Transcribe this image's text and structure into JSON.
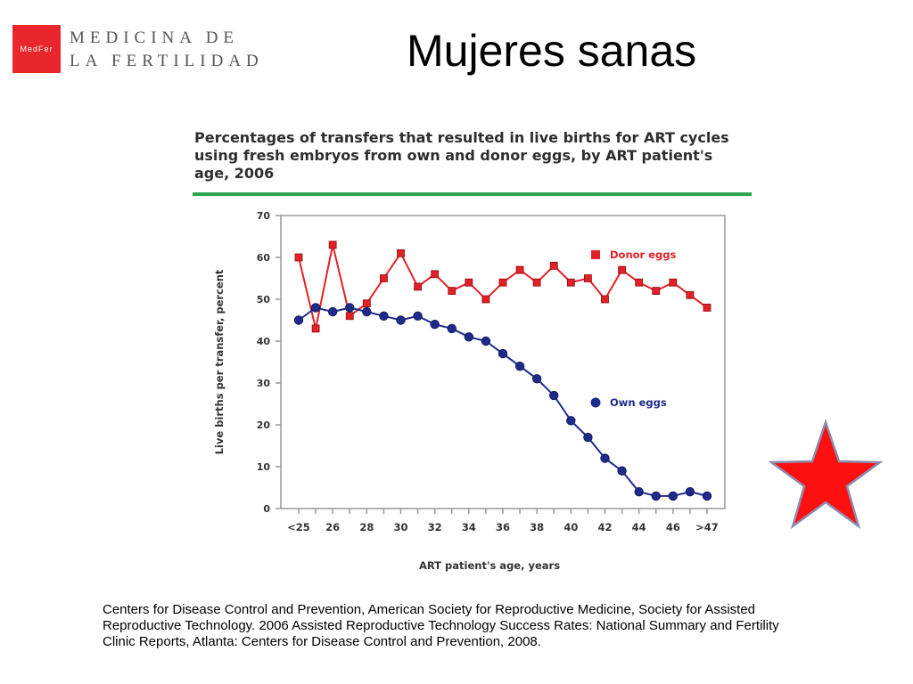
{
  "logo": {
    "mark": "MedFer",
    "line1": "MEDICINA DE",
    "line2": "LA FERTILIDAD"
  },
  "slide": {
    "title": "Mujeres sanas"
  },
  "chart_data": {
    "type": "line",
    "title": "Percentages of transfers that resulted in live births for ART cycles using fresh embryos from own and donor eggs, by ART patient's age, 2006",
    "xlabel": "ART patient's age, years",
    "ylabel": "Live births per transfer, percent",
    "ylim": [
      0,
      70
    ],
    "yticks": [
      0,
      10,
      20,
      30,
      40,
      50,
      60,
      70
    ],
    "categories": [
      "<25",
      "25",
      "26",
      "27",
      "28",
      "29",
      "30",
      "31",
      "32",
      "33",
      "34",
      "35",
      "36",
      "37",
      "38",
      "39",
      "40",
      "41",
      "42",
      "43",
      "44",
      "45",
      "46",
      "47",
      ">47"
    ],
    "xtick_labels": [
      "<25",
      "26",
      "28",
      "30",
      "32",
      "34",
      "36",
      "38",
      "40",
      "42",
      "44",
      "46",
      ">47"
    ],
    "grid": false,
    "series": [
      {
        "name": "Donor eggs",
        "color": "#e32027",
        "marker": "square",
        "values": [
          60,
          43,
          63,
          46,
          49,
          55,
          61,
          53,
          56,
          52,
          54,
          50,
          54,
          57,
          54,
          58,
          54,
          55,
          50,
          57,
          54,
          52,
          54,
          51,
          48
        ]
      },
      {
        "name": "Own eggs",
        "color": "#1f2a8c",
        "marker": "circle",
        "values": [
          45,
          48,
          47,
          48,
          47,
          46,
          45,
          46,
          44,
          43,
          41,
          40,
          37,
          34,
          31,
          27,
          21,
          17,
          12,
          9,
          4,
          3,
          3,
          4,
          3
        ]
      }
    ]
  },
  "citation": "Centers for Disease Control and Prevention, American Society for Reproductive Medicine, Society for Assisted Reproductive Technology. 2006 Assisted Reproductive Technology Success Rates: National Summary and Fertility Clinic Reports, Atlanta: Centers for Disease Control and Prevention, 2008.",
  "decor": {
    "star_color": "#ff1010"
  }
}
